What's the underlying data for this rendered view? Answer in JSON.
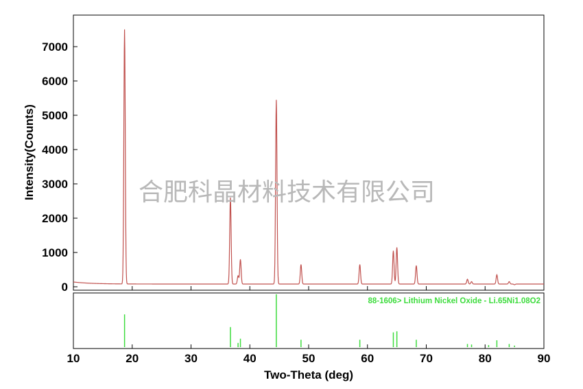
{
  "chart_data": {
    "type": "line",
    "xlabel": "Two-Theta (deg)",
    "ylabel": "Intensity(Counts)",
    "xlim": [
      10,
      90
    ],
    "ylim": [
      0,
      7600
    ],
    "x_ticks": [
      10,
      20,
      30,
      40,
      50,
      60,
      70,
      80,
      90
    ],
    "y_ticks": [
      0,
      1000,
      2000,
      3000,
      4000,
      5000,
      6000,
      7000
    ],
    "series": [
      {
        "color": "#c0504d",
        "baseline": 80,
        "peaks": [
          {
            "x": 18.7,
            "y": 7500
          },
          {
            "x": 36.7,
            "y": 2600
          },
          {
            "x": 38.0,
            "y": 320
          },
          {
            "x": 38.4,
            "y": 800
          },
          {
            "x": 44.5,
            "y": 5450
          },
          {
            "x": 48.7,
            "y": 650
          },
          {
            "x": 58.7,
            "y": 650
          },
          {
            "x": 64.4,
            "y": 1050
          },
          {
            "x": 65.0,
            "y": 1150
          },
          {
            "x": 68.3,
            "y": 620
          },
          {
            "x": 77.0,
            "y": 220
          },
          {
            "x": 77.7,
            "y": 150
          },
          {
            "x": 80.6,
            "y": 80
          },
          {
            "x": 82.0,
            "y": 350
          },
          {
            "x": 84.1,
            "y": 150
          },
          {
            "x": 85.0,
            "y": 60
          }
        ]
      }
    ],
    "reference": {
      "label": "88-1606> Lithium Nickel Oxide - Li.65Ni1.08O2",
      "color": "#3ddc3d",
      "lines": [
        {
          "x": 18.7,
          "rel": 0.62
        },
        {
          "x": 36.7,
          "rel": 0.38
        },
        {
          "x": 38.0,
          "rel": 0.08
        },
        {
          "x": 38.4,
          "rel": 0.16
        },
        {
          "x": 44.5,
          "rel": 1.0
        },
        {
          "x": 48.7,
          "rel": 0.14
        },
        {
          "x": 58.7,
          "rel": 0.14
        },
        {
          "x": 64.4,
          "rel": 0.28
        },
        {
          "x": 65.0,
          "rel": 0.3
        },
        {
          "x": 68.3,
          "rel": 0.14
        },
        {
          "x": 77.0,
          "rel": 0.06
        },
        {
          "x": 77.7,
          "rel": 0.05
        },
        {
          "x": 80.6,
          "rel": 0.04
        },
        {
          "x": 82.0,
          "rel": 0.13
        },
        {
          "x": 84.1,
          "rel": 0.06
        },
        {
          "x": 85.0,
          "rel": 0.03
        }
      ]
    },
    "watermark": "合肥科晶材料技术有限公司"
  }
}
